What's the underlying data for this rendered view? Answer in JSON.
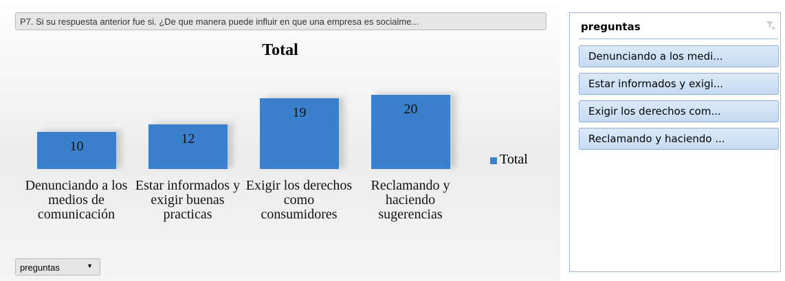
{
  "chart_data": {
    "type": "bar",
    "field_button": "P7. Si su respuesta anterior fue si. ¿De que manera puede influir en que una empresa es socialme...",
    "title": "Total",
    "categories": [
      "Denunciando a los medios de comunicación",
      "Estar informados y exigir buenas practicas",
      "Exigir los derechos como consumidores",
      "Reclamando y haciendo sugerencias"
    ],
    "series": [
      {
        "name": "Total",
        "color": "#3a80cc",
        "values": [
          10,
          12,
          19,
          20
        ]
      }
    ],
    "axis_field": "preguntas",
    "legend": "right"
  },
  "slicer": {
    "title": "preguntas",
    "items": [
      "Denunciando a los medi...",
      "Estar informados y exigi...",
      "Exigir los derechos com...",
      "Reclamando y haciendo ..."
    ]
  }
}
